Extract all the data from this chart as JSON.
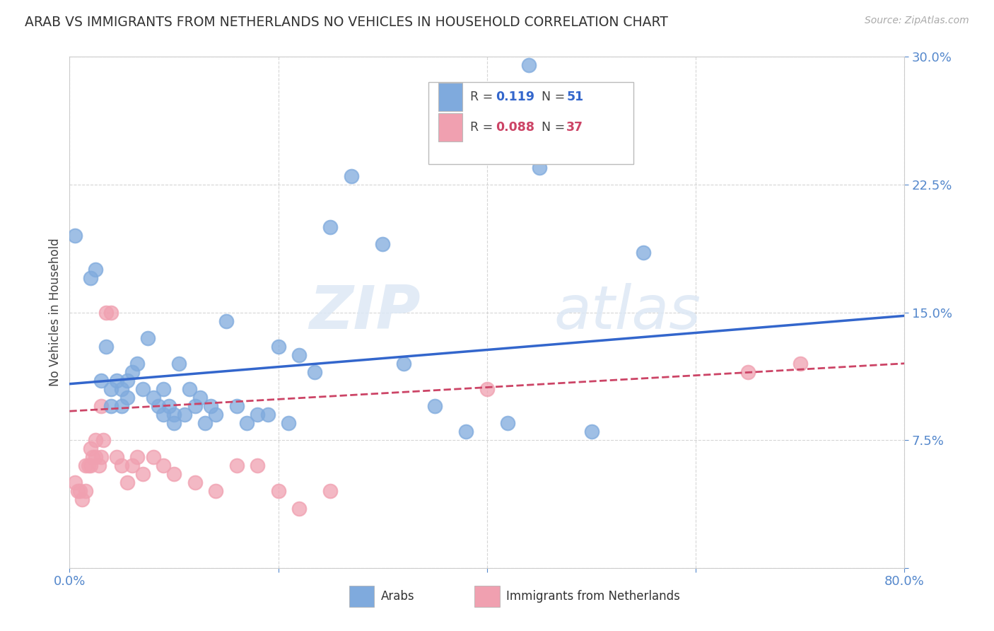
{
  "title": "ARAB VS IMMIGRANTS FROM NETHERLANDS NO VEHICLES IN HOUSEHOLD CORRELATION CHART",
  "source": "Source: ZipAtlas.com",
  "ylabel": "No Vehicles in Household",
  "xlim": [
    0.0,
    0.8
  ],
  "ylim": [
    0.0,
    0.3
  ],
  "xticks": [
    0.0,
    0.2,
    0.4,
    0.6,
    0.8
  ],
  "yticks": [
    0.0,
    0.075,
    0.15,
    0.225,
    0.3
  ],
  "xticklabels": [
    "0.0%",
    "",
    "",
    "",
    "80.0%"
  ],
  "yticklabels": [
    "",
    "7.5%",
    "15.0%",
    "22.5%",
    "30.0%"
  ],
  "grid_color": "#cccccc",
  "background_color": "#ffffff",
  "blue_color": "#7faadd",
  "pink_color": "#f0a0b0",
  "trend_blue": "#3366cc",
  "trend_pink": "#cc4466",
  "watermark_zip": "ZIP",
  "watermark_atlas": "atlas",
  "legend_R1": "R =  0.119",
  "legend_N1": "N = 51",
  "legend_R2": "R =  0.088",
  "legend_N2": "N = 37",
  "legend_label1": "Arabs",
  "legend_label2": "Immigrants from Netherlands",
  "title_color": "#333333",
  "tick_color": "#5588cc",
  "arab_x": [
    0.005,
    0.02,
    0.025,
    0.03,
    0.035,
    0.04,
    0.04,
    0.045,
    0.05,
    0.05,
    0.055,
    0.055,
    0.06,
    0.065,
    0.07,
    0.075,
    0.08,
    0.085,
    0.09,
    0.09,
    0.095,
    0.1,
    0.1,
    0.105,
    0.11,
    0.115,
    0.12,
    0.125,
    0.13,
    0.135,
    0.14,
    0.15,
    0.16,
    0.17,
    0.18,
    0.19,
    0.2,
    0.21,
    0.22,
    0.235,
    0.25,
    0.27,
    0.3,
    0.32,
    0.35,
    0.38,
    0.42,
    0.44,
    0.45,
    0.5,
    0.55
  ],
  "arab_y": [
    0.195,
    0.17,
    0.175,
    0.11,
    0.13,
    0.105,
    0.095,
    0.11,
    0.105,
    0.095,
    0.11,
    0.1,
    0.115,
    0.12,
    0.105,
    0.135,
    0.1,
    0.095,
    0.105,
    0.09,
    0.095,
    0.09,
    0.085,
    0.12,
    0.09,
    0.105,
    0.095,
    0.1,
    0.085,
    0.095,
    0.09,
    0.145,
    0.095,
    0.085,
    0.09,
    0.09,
    0.13,
    0.085,
    0.125,
    0.115,
    0.2,
    0.23,
    0.19,
    0.12,
    0.095,
    0.08,
    0.085,
    0.295,
    0.235,
    0.08,
    0.185
  ],
  "netherlands_x": [
    0.005,
    0.008,
    0.01,
    0.012,
    0.015,
    0.015,
    0.018,
    0.02,
    0.02,
    0.022,
    0.025,
    0.025,
    0.028,
    0.03,
    0.03,
    0.032,
    0.035,
    0.04,
    0.045,
    0.05,
    0.055,
    0.06,
    0.065,
    0.07,
    0.08,
    0.09,
    0.1,
    0.12,
    0.14,
    0.16,
    0.18,
    0.2,
    0.22,
    0.25,
    0.4,
    0.65,
    0.7
  ],
  "netherlands_y": [
    0.05,
    0.045,
    0.045,
    0.04,
    0.06,
    0.045,
    0.06,
    0.06,
    0.07,
    0.065,
    0.075,
    0.065,
    0.06,
    0.065,
    0.095,
    0.075,
    0.15,
    0.15,
    0.065,
    0.06,
    0.05,
    0.06,
    0.065,
    0.055,
    0.065,
    0.06,
    0.055,
    0.05,
    0.045,
    0.06,
    0.06,
    0.045,
    0.035,
    0.045,
    0.105,
    0.115,
    0.12
  ],
  "blue_trend_x": [
    0.0,
    0.8
  ],
  "blue_trend_y": [
    0.108,
    0.148
  ],
  "pink_trend_x": [
    0.0,
    0.8
  ],
  "pink_trend_y": [
    0.092,
    0.12
  ]
}
